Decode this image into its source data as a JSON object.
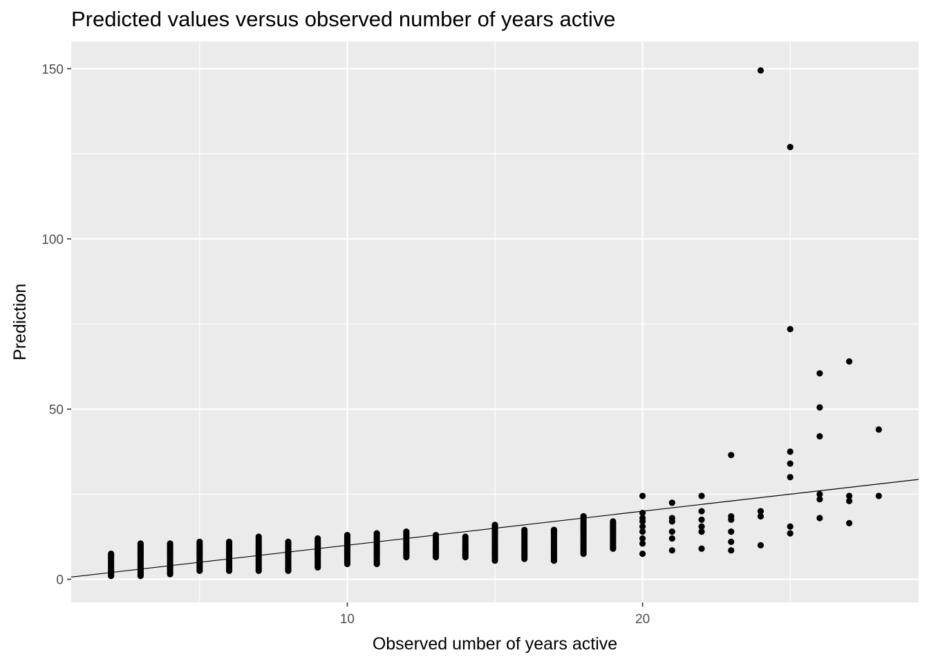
{
  "chart_data": {
    "type": "scatter",
    "title": "Predicted values versus observed number of years active",
    "xlabel": "Observed umber of years active",
    "ylabel": "Prediction",
    "xlim": [
      0.65,
      29.35
    ],
    "ylim": [
      -6.8,
      158
    ],
    "x_ticks": [
      10,
      20
    ],
    "y_ticks": [
      0,
      50,
      100,
      150
    ],
    "x_tick_labels": [
      "10",
      "20"
    ],
    "y_tick_labels": [
      "0",
      "50",
      "100",
      "150"
    ],
    "grid": true,
    "background": "#ebebeb",
    "gridline_color": "#ffffff",
    "point_color": "#000000",
    "reference_line": {
      "type": "identity",
      "slope": 1,
      "intercept": 0
    },
    "columns": [
      {
        "x": 2,
        "min": 1,
        "max": 7.5
      },
      {
        "x": 3,
        "min": 1,
        "max": 10.5
      },
      {
        "x": 4,
        "min": 1.5,
        "max": 10.5
      },
      {
        "x": 5,
        "min": 2.5,
        "max": 11
      },
      {
        "x": 6,
        "min": 2.5,
        "max": 11
      },
      {
        "x": 7,
        "min": 2.5,
        "max": 12.5
      },
      {
        "x": 8,
        "min": 2.5,
        "max": 11
      },
      {
        "x": 9,
        "min": 3.5,
        "max": 12
      },
      {
        "x": 10,
        "min": 4.5,
        "max": 13
      },
      {
        "x": 11,
        "min": 4.5,
        "max": 13.5
      },
      {
        "x": 12,
        "min": 6.5,
        "max": 14
      },
      {
        "x": 13,
        "min": 6.5,
        "max": 13
      },
      {
        "x": 14,
        "min": 6.5,
        "max": 12.5
      },
      {
        "x": 15,
        "min": 5.5,
        "max": 16
      },
      {
        "x": 16,
        "min": 6,
        "max": 14.5
      },
      {
        "x": 17,
        "min": 5.5,
        "max": 14.5
      },
      {
        "x": 18,
        "min": 7.5,
        "max": 18.5
      },
      {
        "x": 19,
        "min": 9,
        "max": 17
      }
    ],
    "points": [
      {
        "x": 17,
        "y": 5.5
      },
      {
        "x": 17,
        "y": 14.5
      },
      {
        "x": 18,
        "y": 16
      },
      {
        "x": 18,
        "y": 18.5
      },
      {
        "x": 20,
        "y": 7.5
      },
      {
        "x": 20,
        "y": 10.5
      },
      {
        "x": 20,
        "y": 12
      },
      {
        "x": 20,
        "y": 14
      },
      {
        "x": 20,
        "y": 15.5
      },
      {
        "x": 20,
        "y": 17
      },
      {
        "x": 20,
        "y": 18
      },
      {
        "x": 20,
        "y": 19.5
      },
      {
        "x": 20,
        "y": 24.5
      },
      {
        "x": 21,
        "y": 8.5
      },
      {
        "x": 21,
        "y": 12
      },
      {
        "x": 21,
        "y": 14
      },
      {
        "x": 21,
        "y": 17
      },
      {
        "x": 21,
        "y": 18
      },
      {
        "x": 21,
        "y": 22.5
      },
      {
        "x": 22,
        "y": 9
      },
      {
        "x": 22,
        "y": 14
      },
      {
        "x": 22,
        "y": 15.5
      },
      {
        "x": 22,
        "y": 17.5
      },
      {
        "x": 22,
        "y": 20
      },
      {
        "x": 22,
        "y": 24.5
      },
      {
        "x": 23,
        "y": 8.5
      },
      {
        "x": 23,
        "y": 11
      },
      {
        "x": 23,
        "y": 14
      },
      {
        "x": 23,
        "y": 17.5
      },
      {
        "x": 23,
        "y": 18.5
      },
      {
        "x": 23,
        "y": 36.5
      },
      {
        "x": 24,
        "y": 10
      },
      {
        "x": 24,
        "y": 18.5
      },
      {
        "x": 24,
        "y": 20
      },
      {
        "x": 24,
        "y": 149.5
      },
      {
        "x": 25,
        "y": 13.5
      },
      {
        "x": 25,
        "y": 15.5
      },
      {
        "x": 25,
        "y": 30
      },
      {
        "x": 25,
        "y": 34
      },
      {
        "x": 25,
        "y": 37.5
      },
      {
        "x": 25,
        "y": 73.5
      },
      {
        "x": 25,
        "y": 127
      },
      {
        "x": 26,
        "y": 18
      },
      {
        "x": 26,
        "y": 23.5
      },
      {
        "x": 26,
        "y": 25
      },
      {
        "x": 26,
        "y": 42
      },
      {
        "x": 26,
        "y": 50.5
      },
      {
        "x": 26,
        "y": 60.5
      },
      {
        "x": 27,
        "y": 16.5
      },
      {
        "x": 27,
        "y": 23
      },
      {
        "x": 27,
        "y": 24.5
      },
      {
        "x": 27,
        "y": 64
      },
      {
        "x": 28,
        "y": 24.5
      },
      {
        "x": 28,
        "y": 44
      }
    ]
  }
}
